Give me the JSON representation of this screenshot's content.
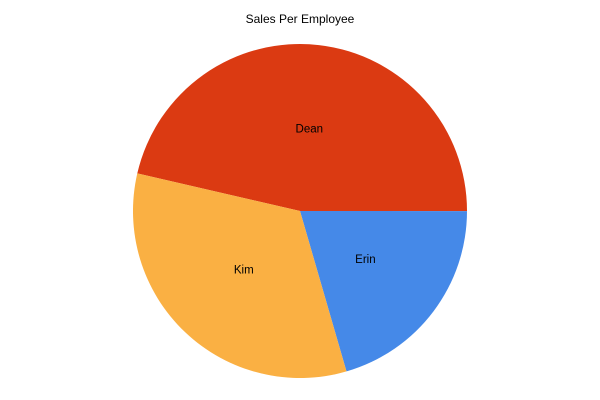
{
  "header": {
    "title": "Sales Per Employee"
  },
  "chart_data": {
    "type": "pie",
    "title": "Sales Per Employee",
    "legend_position": "none",
    "background_color": "#ffffff",
    "label_color": "#000000",
    "direction": "clockwise",
    "start_angle_clockwise_from_top_deg": 283,
    "slices": [
      {
        "label": "Dean",
        "percent": 46.4,
        "color": "#db3a12"
      },
      {
        "label": "Erin",
        "percent": 20.5,
        "color": "#4589e8"
      },
      {
        "label": "Kim",
        "percent": 33.1,
        "color": "#fab043"
      }
    ]
  }
}
